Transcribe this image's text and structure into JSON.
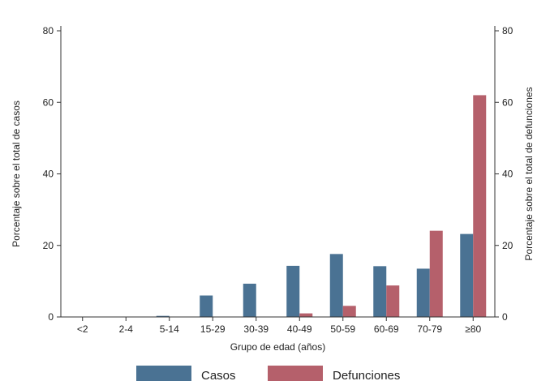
{
  "chart_data": {
    "type": "bar",
    "categories": [
      "<2",
      "2-4",
      "5-14",
      "15-29",
      "30-39",
      "40-49",
      "50-59",
      "60-69",
      "70-79",
      "≥80"
    ],
    "series": [
      {
        "name": "Casos",
        "color": "#4a7293",
        "axis": "left",
        "values": [
          0.1,
          0.1,
          0.3,
          6.0,
          9.3,
          14.3,
          17.6,
          14.2,
          13.5,
          23.2
        ]
      },
      {
        "name": "Defunciones",
        "color": "#b5606b",
        "axis": "right",
        "values": [
          0,
          0,
          0,
          0,
          0.1,
          1.0,
          3.1,
          8.8,
          24.1,
          62.0
        ]
      }
    ],
    "xlabel": "Grupo de edad (años)",
    "ylabel": "Porcentaje sobre el total de casos",
    "ylabel_right": "Porcentaje sobre el total de defunciones",
    "ylim": [
      0,
      80
    ],
    "ylim_right": [
      0,
      80
    ],
    "yticks": [
      0,
      20,
      40,
      60,
      80
    ],
    "grid": false,
    "legend_position": "bottom"
  }
}
